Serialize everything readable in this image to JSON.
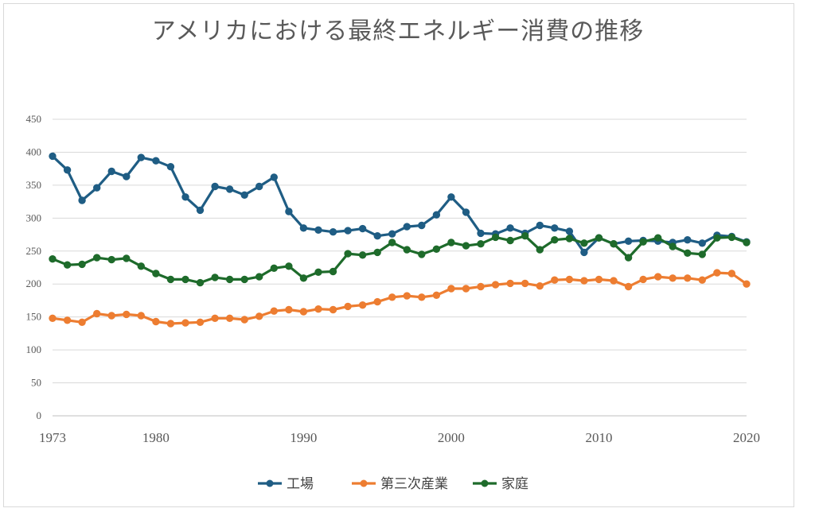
{
  "chart_data": {
    "type": "line",
    "title": "アメリカにおける最終エネルギー消費の推移",
    "xlabel": "",
    "ylabel": "",
    "ylim": [
      0,
      450
    ],
    "yticks": [
      "0",
      "50",
      "100",
      "150",
      "200",
      "250",
      "300",
      "350",
      "400",
      "450"
    ],
    "xlim": [
      1973,
      2020
    ],
    "xticks": [
      "1973",
      "1980",
      "1990",
      "2000",
      "2010",
      "2020"
    ],
    "grid": true,
    "legend_position": "bottom",
    "x": [
      1973,
      1974,
      1975,
      1976,
      1977,
      1978,
      1979,
      1980,
      1981,
      1982,
      1983,
      1984,
      1985,
      1986,
      1987,
      1988,
      1989,
      1990,
      1991,
      1992,
      1993,
      1994,
      1995,
      1996,
      1997,
      1998,
      1999,
      2000,
      2001,
      2002,
      2003,
      2004,
      2005,
      2006,
      2007,
      2008,
      2009,
      2010,
      2011,
      2012,
      2013,
      2014,
      2015,
      2016,
      2017,
      2018,
      2019,
      2020
    ],
    "series": [
      {
        "name": "工場",
        "color": "#1f5d84",
        "values": [
          394,
          373,
          327,
          346,
          371,
          363,
          392,
          387,
          378,
          332,
          312,
          348,
          344,
          335,
          348,
          362,
          310,
          285,
          282,
          279,
          281,
          284,
          273,
          276,
          287,
          289,
          305,
          332,
          309,
          277,
          276,
          285,
          277,
          289,
          285,
          280,
          248,
          270,
          261,
          265,
          266,
          265,
          263,
          267,
          262,
          274,
          272,
          264
        ]
      },
      {
        "name": "第三次産業",
        "color": "#ed7d31",
        "values": [
          148,
          145,
          142,
          155,
          152,
          154,
          152,
          143,
          140,
          141,
          142,
          148,
          148,
          146,
          151,
          159,
          161,
          158,
          162,
          161,
          166,
          168,
          173,
          180,
          182,
          180,
          183,
          193,
          193,
          196,
          199,
          201,
          201,
          197,
          206,
          207,
          205,
          207,
          205,
          196,
          207,
          211,
          209,
          209,
          206,
          217,
          216,
          200
        ]
      },
      {
        "name": "家庭",
        "color": "#1e6b2b",
        "values": [
          238,
          229,
          230,
          240,
          237,
          239,
          227,
          216,
          207,
          207,
          202,
          210,
          207,
          207,
          211,
          224,
          227,
          209,
          218,
          219,
          246,
          244,
          248,
          263,
          252,
          245,
          253,
          263,
          258,
          261,
          271,
          266,
          273,
          252,
          267,
          269,
          262,
          270,
          261,
          240,
          264,
          270,
          257,
          247,
          245,
          270,
          271,
          263
        ]
      }
    ]
  }
}
